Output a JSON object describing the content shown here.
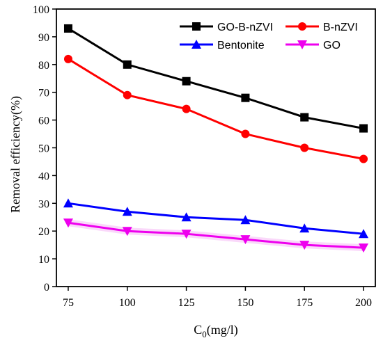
{
  "chart_data": {
    "type": "line",
    "title": "",
    "xlabel_main": "C",
    "xlabel_sub": "0",
    "xlabel_unit": "(mg/l)",
    "ylabel": "Removal efficiency(%)",
    "x": [
      75,
      100,
      125,
      150,
      175,
      200
    ],
    "x_ticks": [
      "75",
      "100",
      "125",
      "150",
      "175",
      "200"
    ],
    "xlim": [
      70,
      205
    ],
    "ylim": [
      0,
      100
    ],
    "y_ticks": [
      "0",
      "10",
      "20",
      "30",
      "40",
      "50",
      "60",
      "70",
      "80",
      "90",
      "100"
    ],
    "grid": false,
    "legend_position": "top-right",
    "series": [
      {
        "name": "GO-B-nZVI",
        "color": "#000000",
        "marker": "square",
        "values": [
          93,
          80,
          74,
          68,
          61,
          57
        ]
      },
      {
        "name": "B-nZVI",
        "color": "#ff0000",
        "marker": "circle",
        "values": [
          82,
          69,
          64,
          55,
          50,
          46
        ]
      },
      {
        "name": "Bentonite",
        "color": "#0000ff",
        "marker": "triangle-up",
        "values": [
          30,
          27,
          25,
          24,
          21,
          19
        ]
      },
      {
        "name": "GO",
        "color": "#ee00ee",
        "marker": "triangle-down",
        "values": [
          23,
          20,
          19,
          17,
          15,
          14
        ]
      }
    ]
  }
}
